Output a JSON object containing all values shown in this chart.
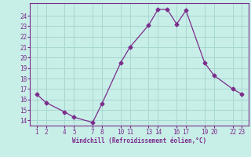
{
  "x": [
    1,
    2,
    4,
    5,
    7,
    8,
    10,
    11,
    13,
    14,
    15,
    16,
    17,
    19,
    20,
    22,
    23
  ],
  "y": [
    16.5,
    15.7,
    14.8,
    14.3,
    13.8,
    15.6,
    19.5,
    21.0,
    23.1,
    24.6,
    24.6,
    23.2,
    24.5,
    19.5,
    18.3,
    17.0,
    16.5
  ],
  "line_color": "#7B2D8B",
  "marker": "D",
  "marker_size": 2.5,
  "bg_color": "#c8eee8",
  "grid_color": "#a8d8d0",
  "axis_color": "#7B2D8B",
  "xlabel": "Windchill (Refroidissement éolien,°C)",
  "xlabel_color": "#7B2D8B",
  "ylim": [
    13.5,
    25.2
  ],
  "yticks": [
    14,
    15,
    16,
    17,
    18,
    19,
    20,
    21,
    22,
    23,
    24
  ],
  "xtick_positions": [
    1,
    2,
    4,
    5,
    7,
    8,
    10,
    11,
    13,
    14,
    16,
    17,
    19,
    20,
    22,
    23
  ],
  "xtick_labels": [
    "1",
    "2",
    "4",
    "5",
    "7",
    "8",
    "10",
    "11",
    "13",
    "14",
    "16",
    "17",
    "19",
    "20",
    "22",
    "23"
  ],
  "tick_color": "#7B2D8B",
  "xlim": [
    0.3,
    23.7
  ]
}
